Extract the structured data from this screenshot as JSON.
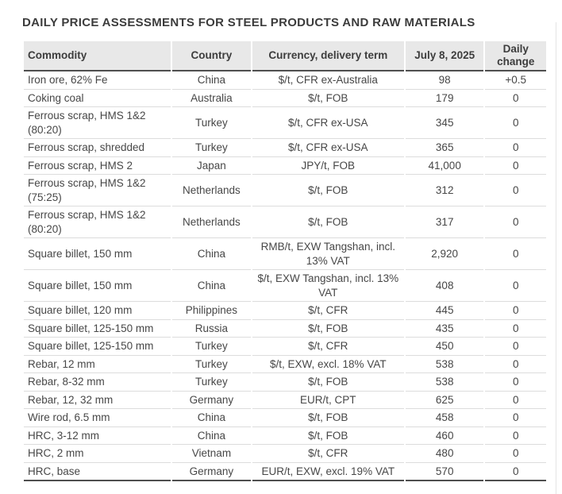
{
  "page": {
    "title": "DAILY PRICE ASSESSMENTS FOR STEEL PRODUCTS AND RAW MATERIALS"
  },
  "colors": {
    "header_bg": "#e8e8e8",
    "dark_rule": "#4f4f4f",
    "row_rule": "#dcdcdc",
    "text": "#474747"
  },
  "table": {
    "columns": [
      "Commodity",
      "Country",
      "Currency, delivery term",
      "July 8, 2025",
      "Daily change"
    ],
    "rows": [
      {
        "commodity": "Iron ore, 62% Fe",
        "country": "China",
        "currency": "$/t, CFR ex-Australia",
        "price": "98",
        "change": "+0.5"
      },
      {
        "commodity": "Coking coal",
        "country": "Australia",
        "currency": "$/t, FOB",
        "price": "179",
        "change": "0"
      },
      {
        "commodity": "Ferrous scrap, HMS 1&2 (80:20)",
        "country": "Turkey",
        "currency": "$/t, CFR ex-USA",
        "price": "345",
        "change": "0"
      },
      {
        "commodity": "Ferrous scrap, shredded",
        "country": "Turkey",
        "currency": "$/t, CFR ex-USA",
        "price": "365",
        "change": "0"
      },
      {
        "commodity": "Ferrous scrap, HMS 2",
        "country": "Japan",
        "currency": "JPY/t, FOB",
        "price": "41,000",
        "change": "0"
      },
      {
        "commodity": "Ferrous scrap, HMS 1&2 (75:25)",
        "country": "Netherlands",
        "currency": "$/t, FOB",
        "price": "312",
        "change": "0"
      },
      {
        "commodity": "Ferrous scrap, HMS 1&2 (80:20)",
        "country": "Netherlands",
        "currency": "$/t, FOB",
        "price": "317",
        "change": "0"
      },
      {
        "commodity": "Square billet, 150 mm",
        "country": "China",
        "currency": "RMB/t, EXW Tangshan, incl. 13% VAT",
        "price": "2,920",
        "change": "0"
      },
      {
        "commodity": "Square billet, 150 mm",
        "country": "China",
        "currency": "$/t, EXW Tangshan, incl. 13% VAT",
        "price": "408",
        "change": "0"
      },
      {
        "commodity": "Square billet, 120 mm",
        "country": "Philippines",
        "currency": "$/t, CFR",
        "price": "445",
        "change": "0"
      },
      {
        "commodity": "Square billet, 125-150 mm",
        "country": "Russia",
        "currency": "$/t, FOB",
        "price": "435",
        "change": "0"
      },
      {
        "commodity": "Square billet, 125-150 mm",
        "country": "Turkey",
        "currency": "$/t, CFR",
        "price": "450",
        "change": "0"
      },
      {
        "commodity": "Rebar, 12 mm",
        "country": "Turkey",
        "currency": "$/t, EXW, excl. 18% VAT",
        "price": "538",
        "change": "0"
      },
      {
        "commodity": "Rebar, 8-32 mm",
        "country": "Turkey",
        "currency": "$/t, FOB",
        "price": "538",
        "change": "0"
      },
      {
        "commodity": "Rebar, 12, 32 mm",
        "country": "Germany",
        "currency": "EUR/t, CPT",
        "price": "625",
        "change": "0"
      },
      {
        "commodity": "Wire rod, 6.5 mm",
        "country": "China",
        "currency": "$/t, FOB",
        "price": "458",
        "change": "0"
      },
      {
        "commodity": "HRC, 3-12 mm",
        "country": "China",
        "currency": "$/t, FOB",
        "price": "460",
        "change": "0"
      },
      {
        "commodity": "HRC, 2 mm",
        "country": "Vietnam",
        "currency": "$/t, CFR",
        "price": "480",
        "change": "0"
      },
      {
        "commodity": "HRC, base",
        "country": "Germany",
        "currency": "EUR/t, EXW, excl. 19% VAT",
        "price": "570",
        "change": "0"
      }
    ]
  }
}
